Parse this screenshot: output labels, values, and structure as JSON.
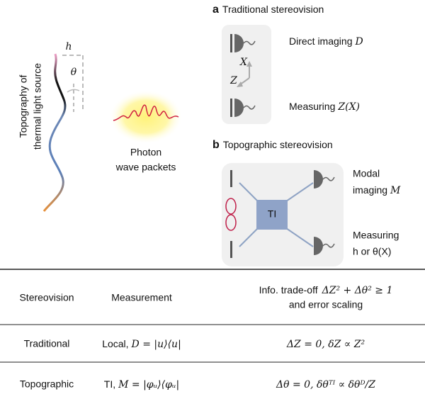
{
  "source": {
    "label": [
      "Topography of",
      "thermal light source"
    ],
    "h": "h",
    "theta": "θ"
  },
  "photon": {
    "label": [
      "Photon",
      "wave packets"
    ]
  },
  "panel_a": {
    "letter": "a",
    "title": "Traditional stereovision",
    "x_axis": "X",
    "z_axis": "Z",
    "top": {
      "text": "Direct imaging",
      "math": "D"
    },
    "bottom": {
      "text": "Measuring",
      "math": "Z(X)"
    }
  },
  "panel_b": {
    "letter": "b",
    "title": "Topographic stereovision",
    "device": "TI",
    "top": {
      "line1": "Modal",
      "line2_text": "imaging",
      "line2_math": "M"
    },
    "bottom": {
      "line1": "Measuring",
      "line2": "h or θ(X)"
    }
  },
  "table": {
    "header": [
      "Stereovision",
      "Measurement",
      {
        "text": "Info. trade-off",
        "math": "ΔZ² + Δθ² ≥ 1",
        "line2": "and error scaling"
      }
    ],
    "rows": [
      [
        "Traditional",
        {
          "text": "Local,",
          "math": "D = |u⟩⟨u|"
        },
        "ΔZ = 0,  δZ ∝ Z²"
      ],
      [
        "Topographic",
        {
          "text": "TI,",
          "math": "M = |φᵤ⟩⟨φᵤ|"
        },
        "Δθ = 0,  δθᵀᴵ ∝ δθᴰ/Z"
      ]
    ]
  }
}
